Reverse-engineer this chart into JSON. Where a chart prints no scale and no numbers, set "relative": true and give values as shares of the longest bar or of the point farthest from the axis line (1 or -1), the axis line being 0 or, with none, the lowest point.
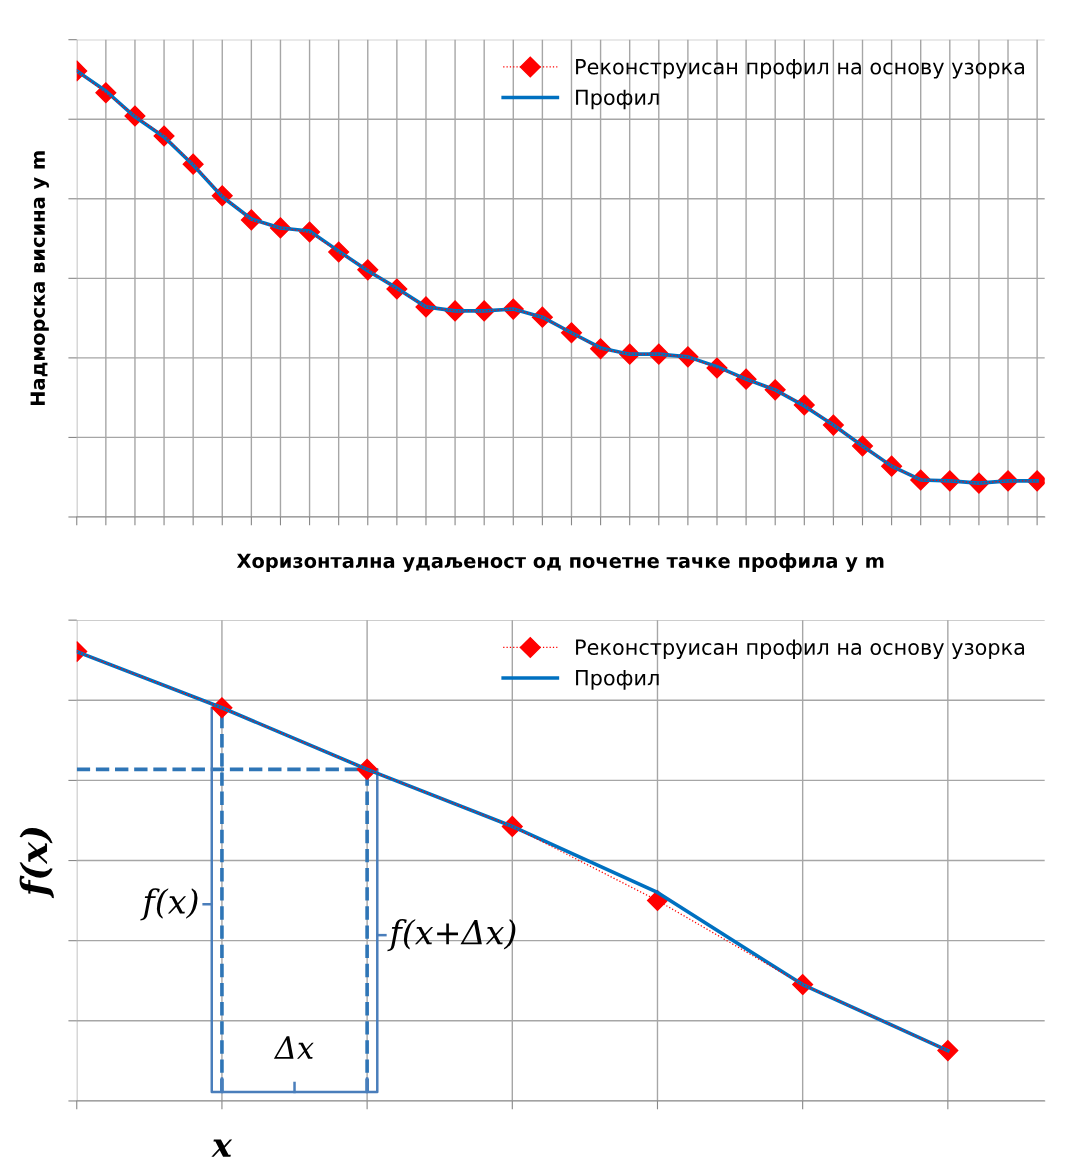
{
  "chart_data": [
    {
      "type": "line",
      "relative": true,
      "xlabel": "Хоризонтална удаљеност од почетне тачке профила у m",
      "ylabel": "Надморска висина у m",
      "categories": [
        null,
        null,
        null,
        null,
        null,
        null,
        null,
        null,
        null,
        null,
        null,
        null,
        null,
        null,
        null,
        null,
        null,
        null,
        null,
        null,
        null,
        null,
        null,
        null,
        null,
        null,
        null,
        null,
        null,
        null,
        null,
        null,
        null,
        null
      ],
      "tick_labels": false,
      "grid": true,
      "legend": "top right",
      "series": [
        {
          "name": "Реконструисан профил на основу узорка",
          "color": "#ff0000",
          "marker": "diamond",
          "line_style": "dotted",
          "values": [
            1,
            0.951,
            0.899,
            0.854,
            0.791,
            0.72,
            0.666,
            0.648,
            0.639,
            0.594,
            0.554,
            0.511,
            0.471,
            0.462,
            0.462,
            0.466,
            0.448,
            0.413,
            0.377,
            0.365,
            0.365,
            0.359,
            0.334,
            0.309,
            0.285,
            0.251,
            0.206,
            0.159,
            0.114,
            0.083,
            0.081,
            0.076,
            0.081,
            0.081
          ]
        },
        {
          "name": "Профил",
          "color": "#0070c0",
          "marker": "none",
          "line_style": "solid",
          "values": [
            1,
            0.955,
            0.897,
            0.852,
            0.789,
            0.718,
            0.668,
            0.648,
            0.641,
            0.596,
            0.552,
            0.513,
            0.471,
            0.462,
            0.462,
            0.466,
            0.448,
            0.413,
            0.379,
            0.365,
            0.365,
            0.359,
            0.337,
            0.309,
            0.285,
            0.249,
            0.206,
            0.159,
            0.114,
            0.083,
            0.081,
            0.076,
            0.081,
            0.081
          ]
        }
      ]
    },
    {
      "type": "line",
      "relative": true,
      "ylabel": "f(x)",
      "categories": [
        null,
        null,
        null,
        null,
        null,
        null,
        null
      ],
      "tick_labels": false,
      "grid": true,
      "legend": "top right",
      "annotations": [
        "f(x)",
        "f(x+Δx)",
        "Δx",
        "x"
      ],
      "ref_lines": [
        {
          "axis": "y",
          "value": 0.738,
          "color": "#2e75b6",
          "line_style": "dashed"
        }
      ],
      "series": [
        {
          "name": "Реконструисан профил на основу узорка",
          "color": "#ff0000",
          "marker": "diamond",
          "line_style": "dotted",
          "values": [
            1,
            0.875,
            0.738,
            0.611,
            0.446,
            0.259,
            0.112
          ]
        },
        {
          "name": "Профил",
          "color": "#0070c0",
          "marker": "none",
          "line_style": "solid",
          "values": [
            1,
            0.875,
            0.738,
            0.611,
            0.464,
            0.259,
            0.112
          ]
        }
      ]
    }
  ]
}
